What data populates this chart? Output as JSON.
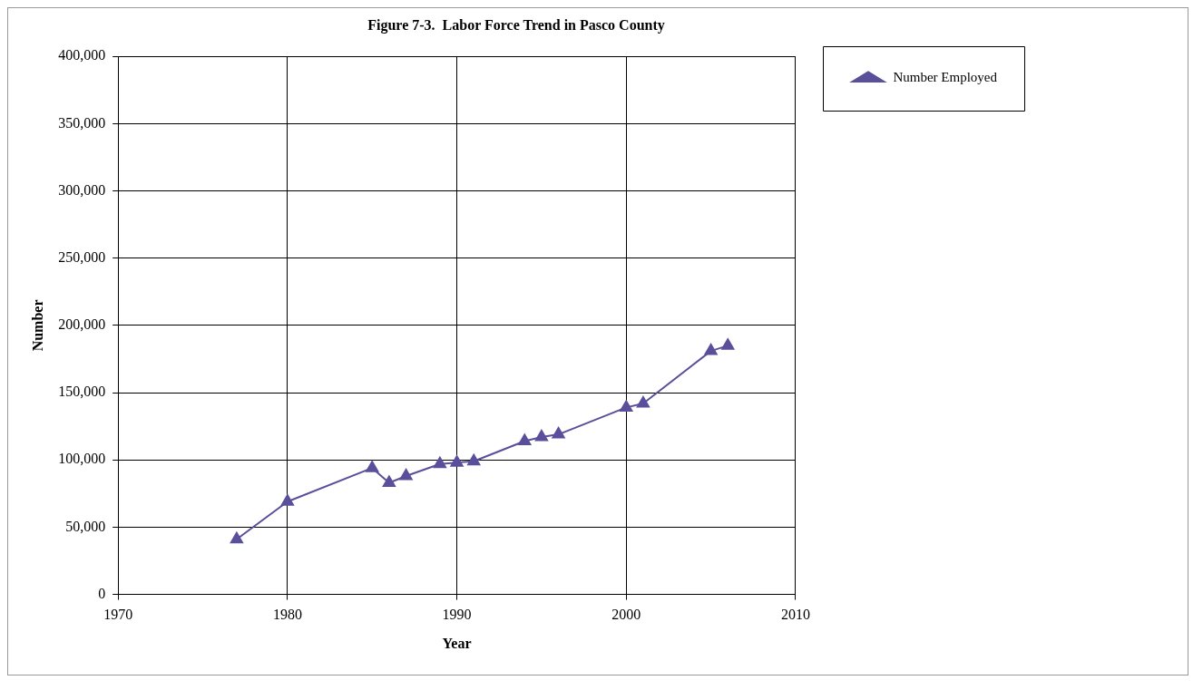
{
  "chart_data": {
    "type": "line",
    "title": "Figure 7-3.  Labor Force Trend in Pasco County",
    "xlabel": "Year",
    "ylabel": "Number",
    "x": [
      1977,
      1980,
      1985,
      1986,
      1987,
      1989,
      1990,
      1991,
      1994,
      1995,
      1996,
      2000,
      2001,
      2005,
      2006
    ],
    "series": [
      {
        "name": "Number Employed",
        "color": "#5a4f9a",
        "values": [
          41000,
          69000,
          94000,
          83000,
          88000,
          97000,
          98000,
          99000,
          114000,
          117000,
          119000,
          139000,
          142000,
          181000,
          185000
        ]
      }
    ],
    "xlim": [
      1970,
      2010
    ],
    "xticks": [
      1970,
      1980,
      1990,
      2000,
      2010
    ],
    "ylim": [
      0,
      400000
    ],
    "yticks": [
      0,
      {
        "value": 50000,
        "label": "50,000"
      },
      {
        "value": 100000,
        "label": "100,000"
      },
      {
        "value": 150000,
        "label": "150,000"
      },
      {
        "value": 200000,
        "label": "200,000"
      },
      {
        "value": 250000,
        "label": "250,000"
      },
      {
        "value": 300000,
        "label": "300,000"
      },
      {
        "value": 350000,
        "label": "350,000"
      },
      {
        "value": 400000,
        "label": "400,000"
      }
    ],
    "grid": true,
    "legend": "top right",
    "marker": "triangle",
    "line_style": "solid"
  }
}
